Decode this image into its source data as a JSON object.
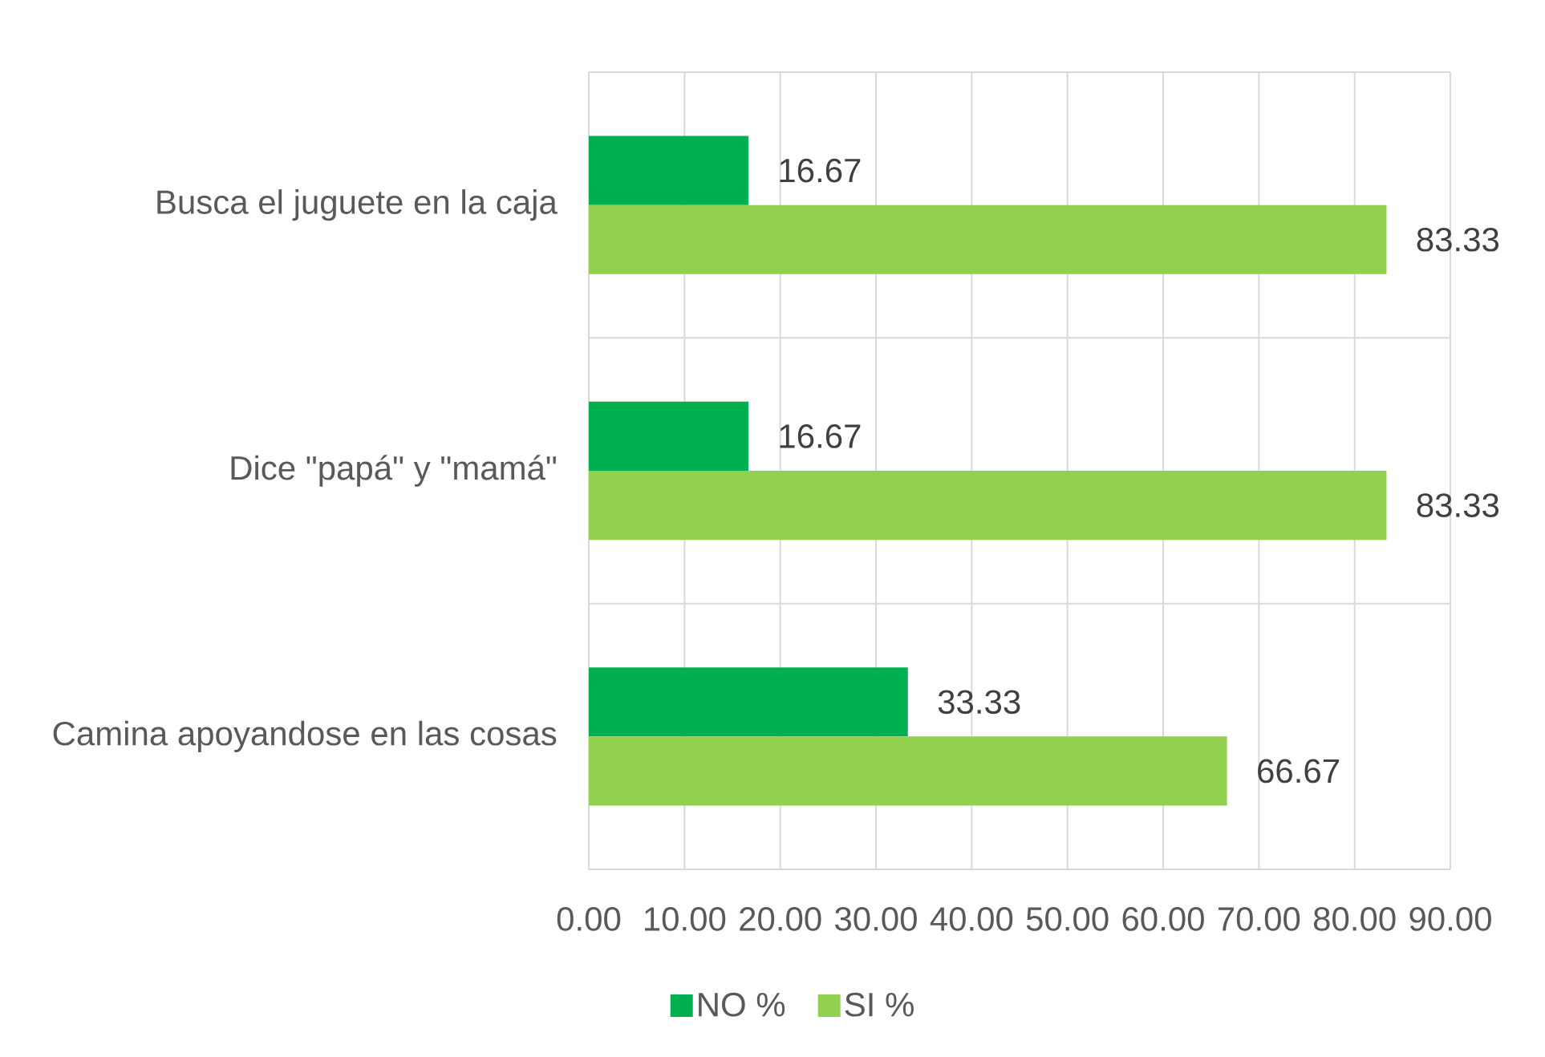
{
  "chart_data": {
    "type": "bar",
    "orientation": "horizontal",
    "categories": [
      "Busca el juguete en la caja",
      "Dice \"papá\" y \"mamá\"",
      "Camina apoyandose en las cosas"
    ],
    "series": [
      {
        "name": "NO %",
        "color": "#00b050",
        "values": [
          16.67,
          16.67,
          33.33
        ]
      },
      {
        "name": "SI %",
        "color": "#92d050",
        "values": [
          83.33,
          83.33,
          66.67
        ]
      }
    ],
    "xlim": [
      0,
      90
    ],
    "xticks": [
      {
        "value": 0,
        "label": "0.00"
      },
      {
        "value": 10,
        "label": "10.00"
      },
      {
        "value": 20,
        "label": "20.00"
      },
      {
        "value": 30,
        "label": "30.00"
      },
      {
        "value": 40,
        "label": "40.00"
      },
      {
        "value": 50,
        "label": "50.00"
      },
      {
        "value": 60,
        "label": "60.00"
      },
      {
        "value": 70,
        "label": "70.00"
      },
      {
        "value": 80,
        "label": "80.00"
      },
      {
        "value": 90,
        "label": "90.00"
      }
    ],
    "grid": true,
    "legend": "bottom",
    "data_labels": true
  }
}
